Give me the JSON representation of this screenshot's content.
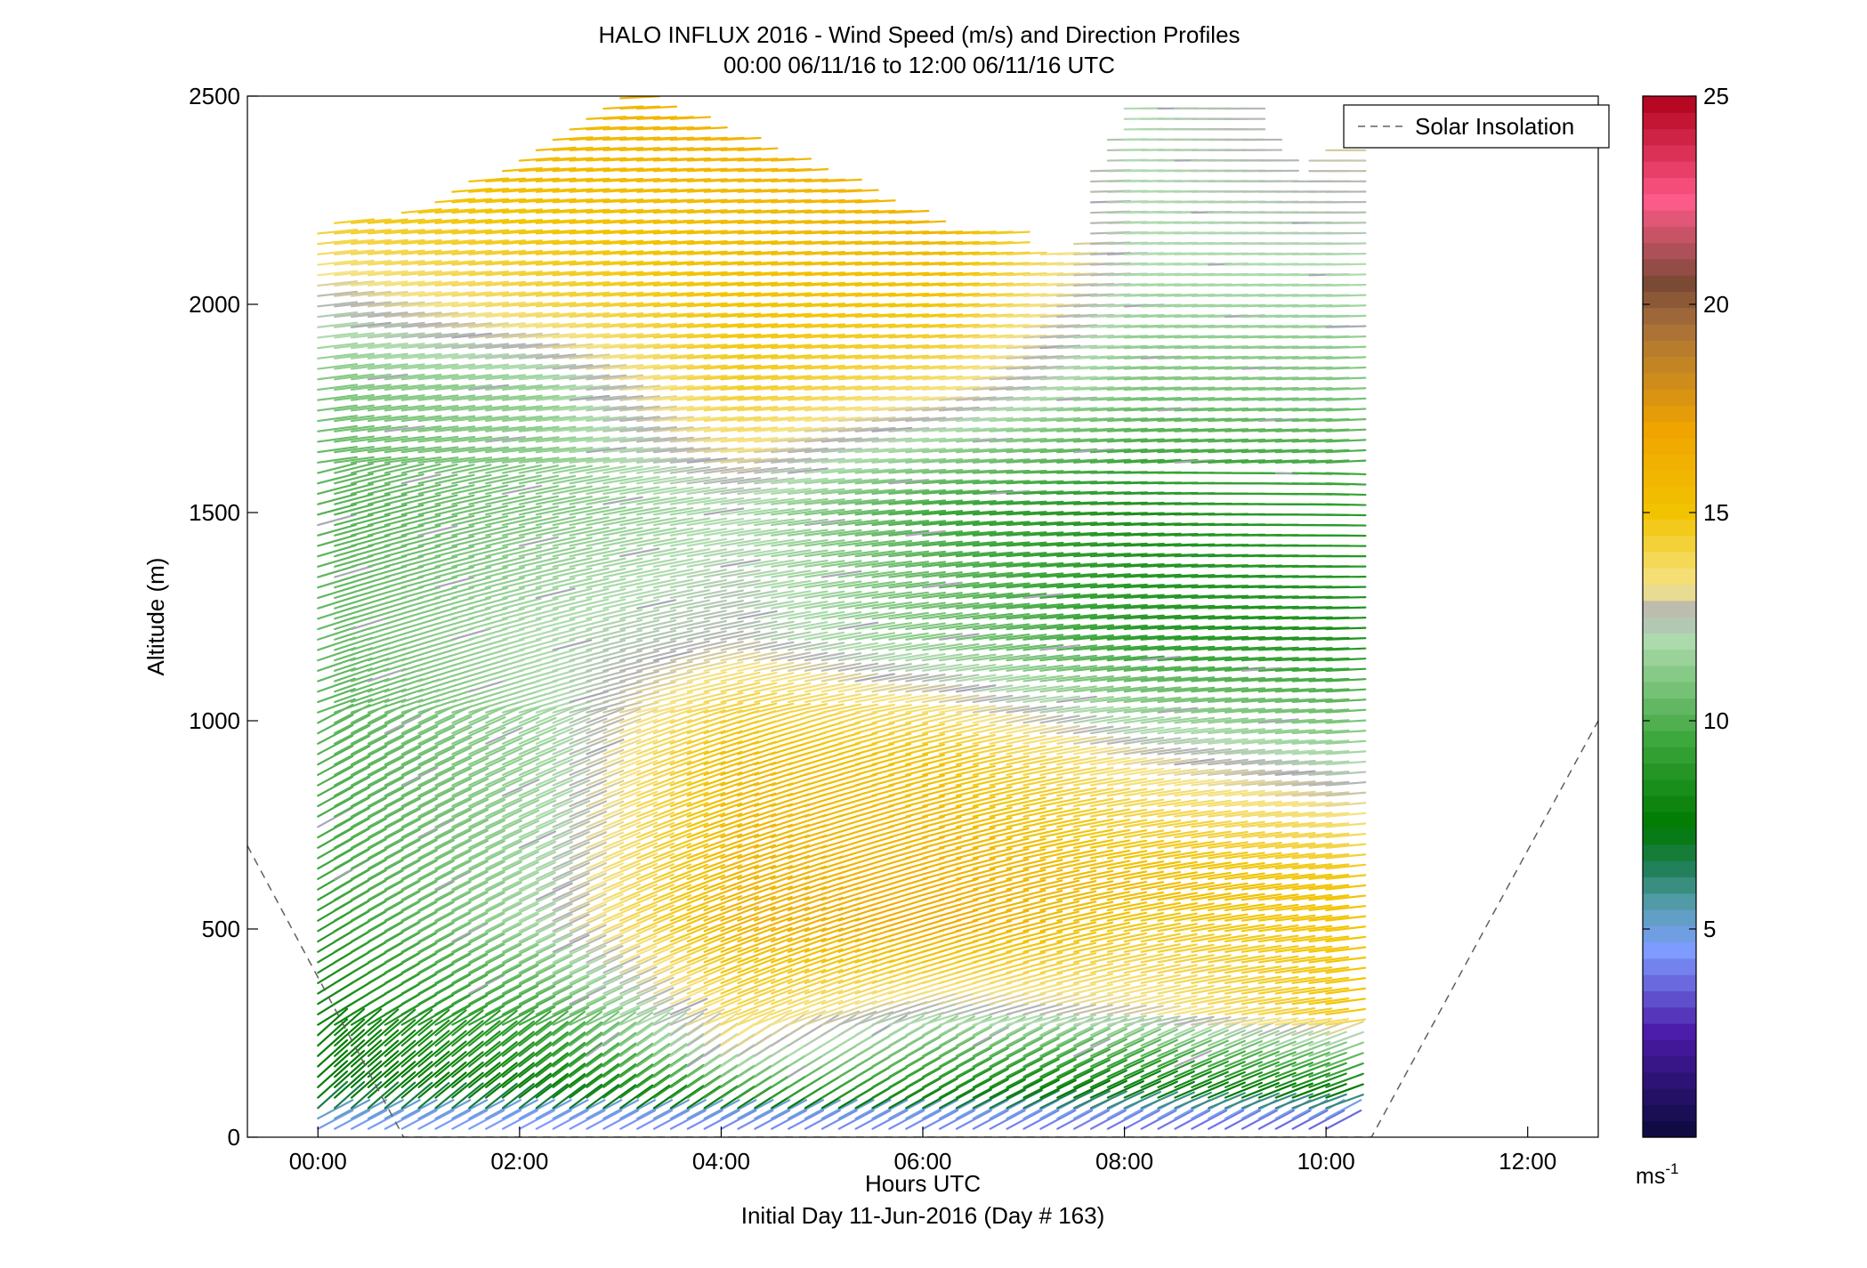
{
  "chart_data": {
    "type": "wind_barb_profile",
    "title": "HALO INFLUX 2016 - Wind Speed (m/s) and Direction Profiles",
    "subtitle": "00:00 06/11/16 to 12:00 06/11/16  UTC",
    "xlabel": "Hours UTC",
    "xlabel2": "Initial Day 11-Jun-2016 (Day # 163)",
    "ylabel": "Altitude (m)",
    "xlim": [
      -0.7,
      12.7
    ],
    "ylim": [
      0,
      2500
    ],
    "x_ticks": [
      0,
      2,
      4,
      6,
      8,
      10,
      12
    ],
    "x_tick_labels": [
      "00:00",
      "02:00",
      "04:00",
      "06:00",
      "08:00",
      "10:00",
      "12:00"
    ],
    "y_ticks": [
      0,
      500,
      1000,
      1500,
      2000,
      2500
    ],
    "y_tick_labels": [
      "0",
      "500",
      "1000",
      "1500",
      "2000",
      "2500"
    ],
    "colorbar": {
      "range": [
        0,
        25
      ],
      "ticks": [
        5,
        10,
        15,
        20,
        25
      ],
      "tick_labels": [
        "5",
        "10",
        "15",
        "20",
        "25"
      ],
      "unit_label": "ms",
      "unit_exponent": "-1",
      "stops": [
        {
          "v": 0,
          "c": "#0b0b3a"
        },
        {
          "v": 2.5,
          "c": "#4b1aa8"
        },
        {
          "v": 4.5,
          "c": "#7e9cff"
        },
        {
          "v": 5.5,
          "c": "#5aa0b6"
        },
        {
          "v": 6.5,
          "c": "#1f7f55"
        },
        {
          "v": 7.5,
          "c": "#007a00"
        },
        {
          "v": 9.5,
          "c": "#3aa63a"
        },
        {
          "v": 12,
          "c": "#b0dcb0"
        },
        {
          "v": 12.6,
          "c": "#b4b4b4"
        },
        {
          "v": 13.2,
          "c": "#f5e48a"
        },
        {
          "v": 15,
          "c": "#f2c400"
        },
        {
          "v": 17,
          "c": "#f0a400"
        },
        {
          "v": 19.5,
          "c": "#a8703a"
        },
        {
          "v": 20.5,
          "c": "#7a4a35"
        },
        {
          "v": 22.5,
          "c": "#ff5a8a"
        },
        {
          "v": 25,
          "c": "#b0001a"
        }
      ]
    },
    "legend": {
      "label": "Solar Insolation",
      "position": "top-right"
    },
    "solar_insolation": {
      "x": [
        -0.7,
        0.85,
        10.45,
        12.7
      ],
      "y": [
        700,
        0,
        0,
        1000
      ]
    },
    "profiles": {
      "time_start": 0,
      "time_step": 0.1667,
      "time_count": 61,
      "altitude_start": 20,
      "altitude_step": 25,
      "speed_grid": [
        {
          "t": 0,
          "h": [
            [
              0,
              4.5
            ],
            [
              40,
              5
            ],
            [
              80,
              7.2
            ],
            [
              300,
              8
            ],
            [
              600,
              9.5
            ],
            [
              900,
              10
            ],
            [
              1200,
              10.5
            ],
            [
              1500,
              10
            ],
            [
              1800,
              11
            ],
            [
              2000,
              12.5
            ],
            [
              2200,
              14.5
            ]
          ]
        },
        {
          "t": 2,
          "h": [
            [
              0,
              4.5
            ],
            [
              40,
              4.5
            ],
            [
              80,
              7.5
            ],
            [
              200,
              9
            ],
            [
              500,
              12
            ],
            [
              900,
              11.5
            ],
            [
              1200,
              12
            ],
            [
              1500,
              11
            ],
            [
              1800,
              11.5
            ],
            [
              2000,
              14
            ],
            [
              2300,
              15.5
            ]
          ]
        },
        {
          "t": 4,
          "h": [
            [
              0,
              4
            ],
            [
              40,
              4.5
            ],
            [
              80,
              9
            ],
            [
              200,
              13
            ],
            [
              500,
              16
            ],
            [
              900,
              15.5
            ],
            [
              1200,
              12.5
            ],
            [
              1500,
              12
            ],
            [
              1800,
              14.5
            ],
            [
              2000,
              15
            ],
            [
              2400,
              16
            ]
          ]
        },
        {
          "t": 6,
          "h": [
            [
              0,
              4
            ],
            [
              40,
              4.5
            ],
            [
              80,
              8
            ],
            [
              200,
              10.5
            ],
            [
              500,
              16.5
            ],
            [
              900,
              15
            ],
            [
              1200,
              11
            ],
            [
              1500,
              9.5
            ],
            [
              1800,
              13.5
            ],
            [
              2000,
              15
            ],
            [
              2200,
              16
            ]
          ]
        },
        {
          "t": 8,
          "h": [
            [
              0,
              3.5
            ],
            [
              40,
              4.5
            ],
            [
              100,
              7.5
            ],
            [
              300,
              13
            ],
            [
              600,
              15.5
            ],
            [
              900,
              13
            ],
            [
              1200,
              9
            ],
            [
              1500,
              8.5
            ],
            [
              1800,
              11
            ],
            [
              2100,
              12
            ],
            [
              2400,
              12
            ]
          ]
        },
        {
          "t": 10,
          "h": [
            [
              0,
              3
            ],
            [
              40,
              4.5
            ],
            [
              100,
              7.8
            ],
            [
              300,
              15
            ],
            [
              600,
              15
            ],
            [
              900,
              12
            ],
            [
              1200,
              8.5
            ],
            [
              1500,
              9
            ],
            [
              1800,
              11
            ],
            [
              2100,
              12
            ],
            [
              2400,
              13
            ]
          ]
        },
        {
          "t": 11.8,
          "h": [
            [
              0,
              4.5
            ],
            [
              40,
              5
            ],
            [
              100,
              8
            ],
            [
              300,
              15.5
            ],
            [
              600,
              15
            ],
            [
              900,
              12
            ],
            [
              1200,
              9
            ],
            [
              1500,
              9.5
            ],
            [
              1800,
              12
            ],
            [
              2100,
              13.5
            ],
            [
              2300,
              16
            ]
          ]
        }
      ],
      "top_altitude": [
        {
          "t": 0,
          "a": 2190
        },
        {
          "t": 1,
          "a": 2230
        },
        {
          "t": 2,
          "a": 2360
        },
        {
          "t": 3,
          "a": 2500
        },
        {
          "t": 4,
          "a": 2400
        },
        {
          "t": 5,
          "a": 2300
        },
        {
          "t": 6,
          "a": 2190
        },
        {
          "t": 6.6,
          "a": 2190
        },
        {
          "t": 7,
          "a": 2110
        },
        {
          "t": 7.5,
          "a": 2150
        },
        {
          "t": 7.6,
          "a": 2300
        },
        {
          "t": 8,
          "a": 2480
        },
        {
          "t": 9,
          "a": 2480
        },
        {
          "t": 9.5,
          "a": 2280
        },
        {
          "t": 10,
          "a": 2390
        },
        {
          "t": 10.5,
          "a": 2480
        },
        {
          "t": 11,
          "a": 2330
        },
        {
          "t": 11.8,
          "a": 2330
        }
      ]
    }
  }
}
